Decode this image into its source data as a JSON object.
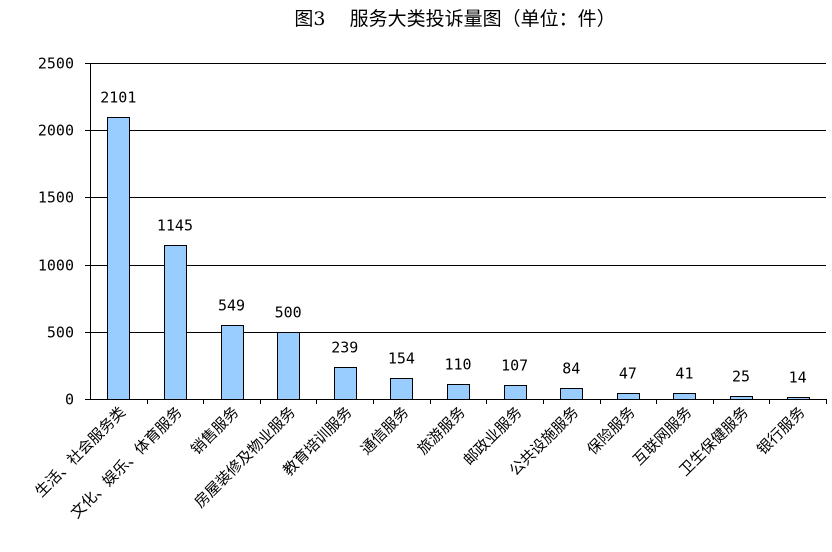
{
  "title": "图3    服务大类投诉量图（单位：件）",
  "chart_data": {
    "type": "bar",
    "title": "图3    服务大类投诉量图（单位：件）",
    "xlabel": "",
    "ylabel": "",
    "ylim": [
      0,
      2500
    ],
    "yticks": [
      0,
      500,
      1000,
      1500,
      2000,
      2500
    ],
    "grid": true,
    "legend": "none",
    "bar_color": "#99CCFF",
    "categories": [
      "生活、社会服务类",
      "文化、娱乐、体育服务",
      "销售服务",
      "房屋装修及物业服务",
      "教育培训服务",
      "通信服务",
      "旅游服务",
      "邮政业服务",
      "公共设施服务",
      "保险服务",
      "互联网服务",
      "卫生保健服务",
      "银行服务"
    ],
    "values": [
      2101,
      1145,
      549,
      500,
      239,
      154,
      110,
      107,
      84,
      47,
      41,
      25,
      14
    ]
  }
}
